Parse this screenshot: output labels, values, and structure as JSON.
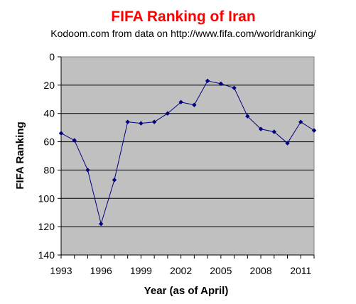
{
  "chart_data": {
    "type": "line",
    "title": "FIFA Ranking of Iran",
    "subtitle": "Kodoom.com from data on http://www.fifa.com/worldranking/",
    "xlabel": "Year (as of April)",
    "ylabel": "FIFA Ranking",
    "xlim": [
      1993,
      2012
    ],
    "ylim": [
      0,
      140
    ],
    "y_inverted": true,
    "x_ticks": [
      1993,
      1996,
      1999,
      2002,
      2005,
      2008,
      2011
    ],
    "y_ticks": [
      0,
      20,
      40,
      60,
      80,
      100,
      120,
      140
    ],
    "grid": "horizontal",
    "plot_background": "#C0C0C0",
    "series": [
      {
        "color": "#000080",
        "points": [
          [
            1993,
            54
          ],
          [
            1994,
            59
          ],
          [
            1995,
            80
          ],
          [
            1996,
            118
          ],
          [
            1997,
            87
          ],
          [
            1998,
            46
          ],
          [
            1999,
            47
          ],
          [
            2000,
            46
          ],
          [
            2001,
            40
          ],
          [
            2002,
            32
          ],
          [
            2003,
            34
          ],
          [
            2004,
            17
          ],
          [
            2005,
            19
          ],
          [
            2006,
            22
          ],
          [
            2007,
            42
          ],
          [
            2008,
            51
          ],
          [
            2009,
            53
          ],
          [
            2010,
            61
          ],
          [
            2011,
            46
          ],
          [
            2012,
            52
          ]
        ]
      }
    ]
  },
  "colors": {
    "title": "#FF0000",
    "text": "#000000"
  }
}
